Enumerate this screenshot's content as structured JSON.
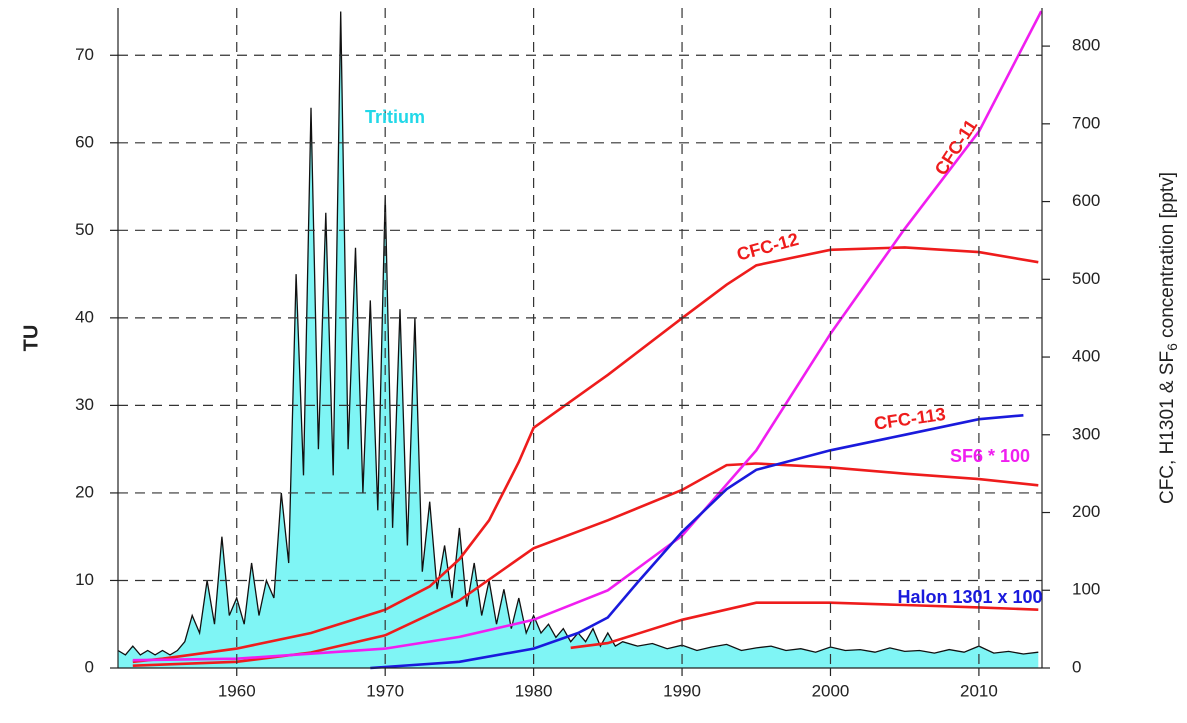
{
  "chart_data": {
    "type": "line",
    "ylabel": "TU",
    "y2label": {
      "before": "CFC, H1301 & SF",
      "sub": "6",
      "after": " concentration [pptv]"
    },
    "xlim": [
      1952,
      2014.25
    ],
    "ylim": [
      0,
      75.4
    ],
    "y2lim": [
      0,
      849
    ],
    "xticks": [
      1960,
      1970,
      1980,
      1990,
      2000,
      2010
    ],
    "yticks": [
      0,
      10,
      20,
      30,
      40,
      50,
      60,
      70
    ],
    "y2ticks": [
      0,
      100,
      200,
      300,
      400,
      500,
      600,
      700,
      800
    ],
    "grid": true,
    "series": [
      {
        "name": "Tritium",
        "color": "#7ff5f5",
        "axis": "y",
        "x": [
          1952,
          1952.5,
          1953,
          1953.5,
          1954,
          1954.5,
          1955,
          1955.5,
          1956,
          1956.5,
          1957,
          1957.5,
          1958,
          1958.5,
          1959,
          1959.5,
          1960,
          1960.5,
          1961,
          1961.5,
          1962,
          1962.5,
          1963,
          1963.5,
          1964,
          1964.5,
          1965,
          1965.5,
          1966,
          1966.5,
          1967,
          1967.5,
          1968,
          1968.5,
          1969,
          1969.5,
          1970,
          1970.5,
          1971,
          1971.5,
          1972,
          1972.5,
          1973,
          1973.5,
          1974,
          1974.5,
          1975,
          1975.5,
          1976,
          1976.5,
          1977,
          1977.5,
          1978,
          1978.5,
          1979,
          1979.5,
          1980,
          1980.5,
          1981,
          1981.5,
          1982,
          1982.5,
          1983,
          1983.5,
          1984,
          1984.5,
          1985,
          1985.5,
          1986,
          1987,
          1988,
          1989,
          1990,
          1991,
          1992,
          1993,
          1994,
          1995,
          1996,
          1997,
          1998,
          1999,
          2000,
          2001,
          2002,
          2003,
          2004,
          2005,
          2006,
          2007,
          2008,
          2009,
          2010,
          2011,
          2012,
          2013,
          2014
        ],
        "values": [
          2,
          1.5,
          2.5,
          1.5,
          2,
          1.5,
          2,
          1.5,
          2,
          3,
          6,
          4,
          10,
          5,
          15,
          6,
          8,
          5,
          12,
          6,
          10,
          8,
          20,
          12,
          45,
          22,
          64,
          25,
          52,
          22,
          75,
          25,
          48,
          20,
          42,
          18,
          54,
          16,
          41,
          14,
          40,
          11,
          19,
          9,
          14,
          8,
          16,
          7,
          12,
          6,
          10,
          5,
          9,
          4.5,
          8,
          4,
          6,
          4,
          5,
          3.5,
          4.5,
          3,
          4,
          3,
          4.5,
          2.5,
          4,
          2.5,
          3,
          2.5,
          2.8,
          2.2,
          2.6,
          2,
          2.4,
          2.7,
          2,
          2.3,
          2.5,
          2,
          2.2,
          1.8,
          2.4,
          2,
          2.1,
          1.8,
          2.3,
          1.9,
          2,
          1.7,
          2.1,
          1.8,
          2.5,
          1.7,
          1.9,
          1.6,
          1.8
        ]
      },
      {
        "name": "CFC-12",
        "color": "#ee1c1c",
        "axis": "y2",
        "x": [
          1953,
          1955,
          1960,
          1965,
          1970,
          1973,
          1975,
          1977,
          1979,
          1980,
          1985,
          1990,
          1993,
          1995,
          2000,
          2005,
          2010,
          2014
        ],
        "values": [
          8,
          12,
          25,
          45,
          75,
          105,
          140,
          190,
          265,
          309,
          377,
          450,
          493,
          518,
          538,
          541,
          535,
          522
        ]
      },
      {
        "name": "CFC-11",
        "color": "#ee1c1c",
        "axis": "y2",
        "x": [
          1953,
          1960,
          1965,
          1970,
          1975,
          1980,
          1985,
          1990,
          1993,
          1995,
          2000,
          2005,
          2010,
          2014
        ],
        "values": [
          3,
          8,
          20,
          42,
          87,
          154,
          190,
          229,
          261,
          263,
          258,
          250,
          243,
          235
        ]
      },
      {
        "name": "CFC-113",
        "color": "#ee1c1c",
        "axis": "y2",
        "x": [
          1982.5,
          1985,
          1990,
          1995,
          2000,
          2005,
          2010,
          2014
        ],
        "values": [
          26,
          32,
          62,
          84,
          84,
          81,
          78,
          75
        ]
      },
      {
        "name": "SF6 * 100",
        "color": "#f01ef0",
        "axis": "y2",
        "x": [
          1953,
          1960,
          1970,
          1975,
          1980,
          1985,
          1990,
          1995,
          2000,
          2005,
          2010,
          2014.2
        ],
        "values": [
          10,
          12,
          25,
          40,
          62,
          100,
          170,
          280,
          430,
          565,
          690,
          845
        ]
      },
      {
        "name": "Halon 1301 x 100",
        "color": "#1a1adc",
        "axis": "y2",
        "x": [
          1969,
          1975,
          1980,
          1983,
          1985,
          1987,
          1990,
          1993,
          1995,
          2000,
          2005,
          2010,
          2013
        ],
        "values": [
          0,
          8,
          25,
          45,
          65,
          110,
          175,
          230,
          255,
          280,
          300,
          320,
          325
        ]
      }
    ]
  }
}
